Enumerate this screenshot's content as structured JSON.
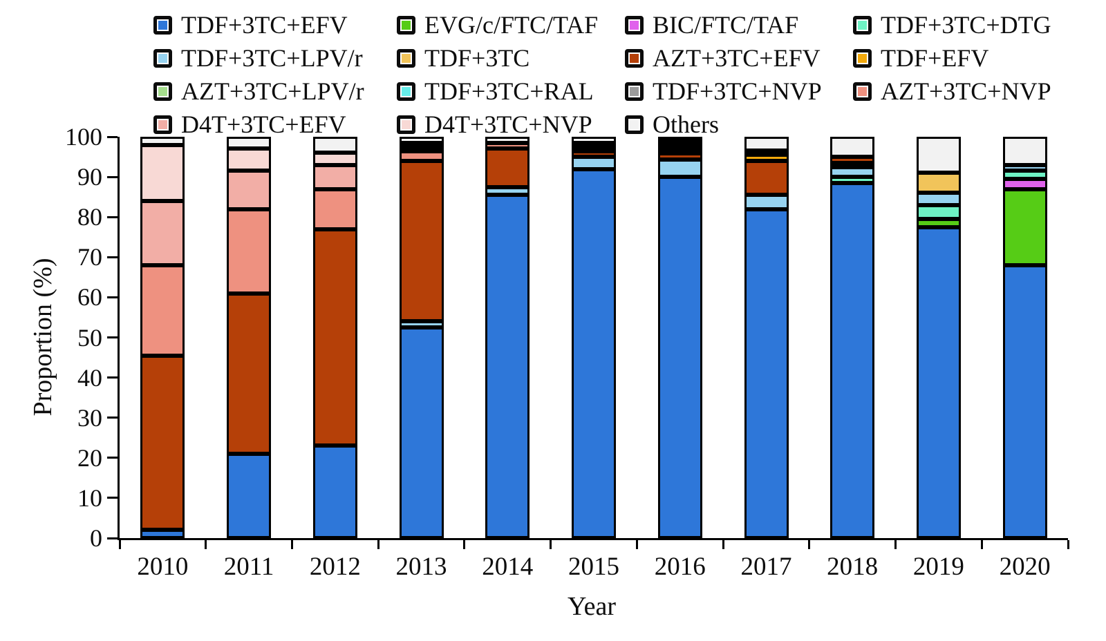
{
  "figure": {
    "background": "#ffffff",
    "axis_color": "#000000",
    "y_axis": {
      "label": "Proportion (%)",
      "min": 0,
      "max": 100,
      "ticks": [
        0,
        10,
        20,
        30,
        40,
        50,
        60,
        70,
        80,
        90,
        100
      ]
    },
    "x_axis": {
      "label": "Year"
    }
  },
  "legend": {
    "position": "top",
    "items": [
      {
        "label": "TDF+3TC+EFV",
        "color": "#2e77d9"
      },
      {
        "label": "EVG/c/FTC/TAF",
        "color": "#56cc16"
      },
      {
        "label": "BIC/FTC/TAF",
        "color": "#e063ec"
      },
      {
        "label": "TDF+3TC+DTG",
        "color": "#6ef2c4"
      },
      {
        "label": "TDF+3TC+LPV/r",
        "color": "#97d3f0"
      },
      {
        "label": "TDF+3TC",
        "color": "#f1c45a"
      },
      {
        "label": "AZT+3TC+EFV",
        "color": "#b54008"
      },
      {
        "label": "TDF+EFV",
        "color": "#f2a90c"
      },
      {
        "label": "AZT+3TC+LPV/r",
        "color": "#a5dd8d"
      },
      {
        "label": "TDF+3TC+RAL",
        "color": "#67eeea"
      },
      {
        "label": "TDF+3TC+NVP",
        "color": "#9b9b9b"
      },
      {
        "label": "AZT+3TC+NVP",
        "color": "#ee9180"
      },
      {
        "label": "D4T+3TC+EFV",
        "color": "#f2aea6"
      },
      {
        "label": "D4T+3TC+NVP",
        "color": "#f8d9d5"
      },
      {
        "label": "Others",
        "color": "#f2f2f2"
      }
    ]
  },
  "chart_data": {
    "type": "bar",
    "stacked": true,
    "title": "",
    "xlabel": "Year",
    "ylabel": "Proportion (%)",
    "ylim": [
      0,
      100
    ],
    "grid": false,
    "legend_position": "top",
    "categories": [
      "2010",
      "2011",
      "2012",
      "2013",
      "2014",
      "2015",
      "2016",
      "2017",
      "2018",
      "2019",
      "2020"
    ],
    "series": [
      {
        "name": "TDF+3TC+EFV",
        "color": "#2e77d9",
        "values": [
          2,
          21,
          23,
          52.5,
          85.5,
          93,
          91.5,
          82,
          88.5,
          77.5,
          68
        ]
      },
      {
        "name": "EVG/c/FTC/TAF",
        "color": "#56cc16",
        "values": [
          0,
          0,
          0,
          0,
          0,
          0,
          0,
          0,
          0,
          2,
          19
        ]
      },
      {
        "name": "BIC/FTC/TAF",
        "color": "#e063ec",
        "values": [
          0,
          0,
          0,
          0,
          0,
          0,
          0,
          0,
          0,
          0,
          2.5
        ]
      },
      {
        "name": "TDF+3TC+DTG",
        "color": "#6ef2c4",
        "values": [
          0,
          0,
          0,
          0,
          0,
          0,
          0,
          0,
          1.5,
          3.5,
          2
        ]
      },
      {
        "name": "TDF+3TC+LPV/r",
        "color": "#97d3f0",
        "values": [
          0,
          0,
          0,
          1.5,
          2,
          3,
          4.5,
          3.5,
          2.5,
          3,
          1.5
        ]
      },
      {
        "name": "TDF+3TC",
        "color": "#f1c45a",
        "values": [
          0,
          0,
          0,
          0,
          0,
          0,
          0,
          0,
          1,
          5,
          0
        ]
      },
      {
        "name": "AZT+3TC+EFV",
        "color": "#b54008",
        "values": [
          43.5,
          40,
          54,
          40,
          9.5,
          1.5,
          1.5,
          8.5,
          1.5,
          0,
          0
        ]
      },
      {
        "name": "TDF+EFV",
        "color": "#f2a90c",
        "values": [
          0,
          0,
          0,
          0,
          0,
          0,
          0,
          1.5,
          0,
          0,
          0
        ]
      },
      {
        "name": "AZT+3TC+LPV/r",
        "color": "#a5dd8d",
        "values": [
          0,
          0,
          0,
          0,
          0,
          0,
          0,
          1,
          0,
          0,
          0
        ]
      },
      {
        "name": "TDF+3TC+RAL",
        "color": "#67eeea",
        "values": [
          0,
          0,
          0,
          0,
          0,
          0.5,
          0.5,
          0,
          0,
          0,
          0
        ]
      },
      {
        "name": "TDF+3TC+NVP",
        "color": "#9b9b9b",
        "values": [
          0,
          0,
          0,
          0,
          0,
          0,
          0.5,
          0,
          0,
          0,
          0
        ]
      },
      {
        "name": "AZT+3TC+NVP",
        "color": "#ee9180",
        "values": [
          22.5,
          21,
          10,
          2.5,
          1.5,
          0.5,
          0.5,
          0,
          0,
          0,
          0
        ]
      },
      {
        "name": "D4T+3TC+EFV",
        "color": "#f2aea6",
        "values": [
          16,
          9.5,
          6,
          1,
          0,
          0,
          0,
          0,
          0,
          0,
          0
        ]
      },
      {
        "name": "D4T+3TC+NVP",
        "color": "#f8d9d5",
        "values": [
          14,
          5.5,
          3,
          1,
          0,
          0,
          0,
          0,
          0,
          0,
          0
        ]
      },
      {
        "name": "Others",
        "color": "#f2f2f2",
        "values": [
          2,
          3,
          4,
          1.5,
          1.5,
          1.5,
          1,
          3.5,
          5,
          9,
          7
        ]
      }
    ]
  }
}
